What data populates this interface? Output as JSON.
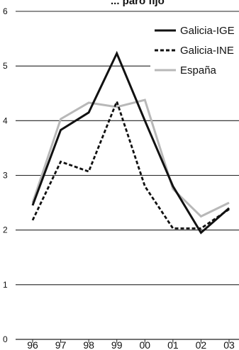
{
  "chart_data": {
    "type": "line",
    "title": "... paro fijo",
    "categories": [
      "96",
      "97",
      "98",
      "99",
      "00",
      "01",
      "02",
      "03"
    ],
    "ylim": [
      0,
      6
    ],
    "yticks": [
      "0",
      "1",
      "2",
      "3",
      "4",
      "5",
      "6"
    ],
    "grid": true,
    "legend_position": "top-right",
    "series": [
      {
        "name": "Galicia-IGE",
        "values": [
          2.45,
          3.83,
          4.15,
          5.23,
          4.0,
          2.8,
          1.95,
          2.4
        ],
        "color": "#111111",
        "style": "solid"
      },
      {
        "name": "Galicia-INE",
        "values": [
          2.18,
          3.25,
          3.07,
          4.35,
          2.8,
          2.03,
          2.03,
          2.38
        ],
        "color": "#111111",
        "style": "dashed"
      },
      {
        "name": "España",
        "values": [
          2.5,
          4.03,
          4.33,
          4.25,
          4.38,
          2.75,
          2.25,
          2.5
        ],
        "color": "#b8b8b8",
        "style": "solid"
      }
    ]
  }
}
